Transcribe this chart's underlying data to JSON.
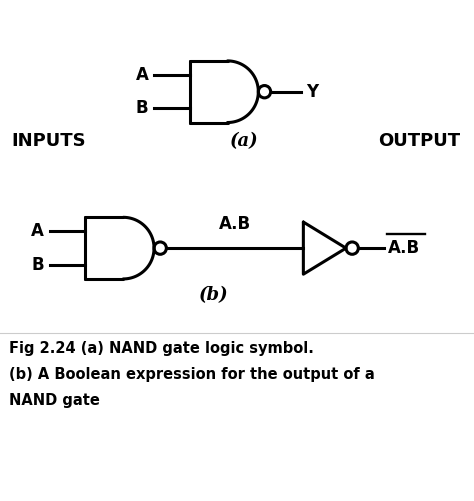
{
  "fig_caption_line1": "Fig 2.24 (a) NAND gate logic symbol.",
  "fig_caption_line2": "(b) A Boolean expression for the output of a",
  "fig_caption_line3": "NAND gate",
  "label_A_a": "A",
  "label_B_a": "B",
  "label_Y_a": "Y",
  "label_a": "(a)",
  "label_INPUTS": "INPUTS",
  "label_OUTPUT": "OUTPUT",
  "label_A_b": "A",
  "label_B_b": "B",
  "label_AB": "A.B",
  "label_ABbar": "A.B",
  "label_b": "(b)",
  "line_color": "#000000",
  "lw": 2.2,
  "font_size_labels": 12,
  "font_size_io": 13,
  "font_size_caption": 10.5,
  "font_size_ab": 12,
  "xlim": [
    0,
    10
  ],
  "ylim": [
    0,
    10.5
  ],
  "figw": 4.74,
  "figh": 5.01
}
